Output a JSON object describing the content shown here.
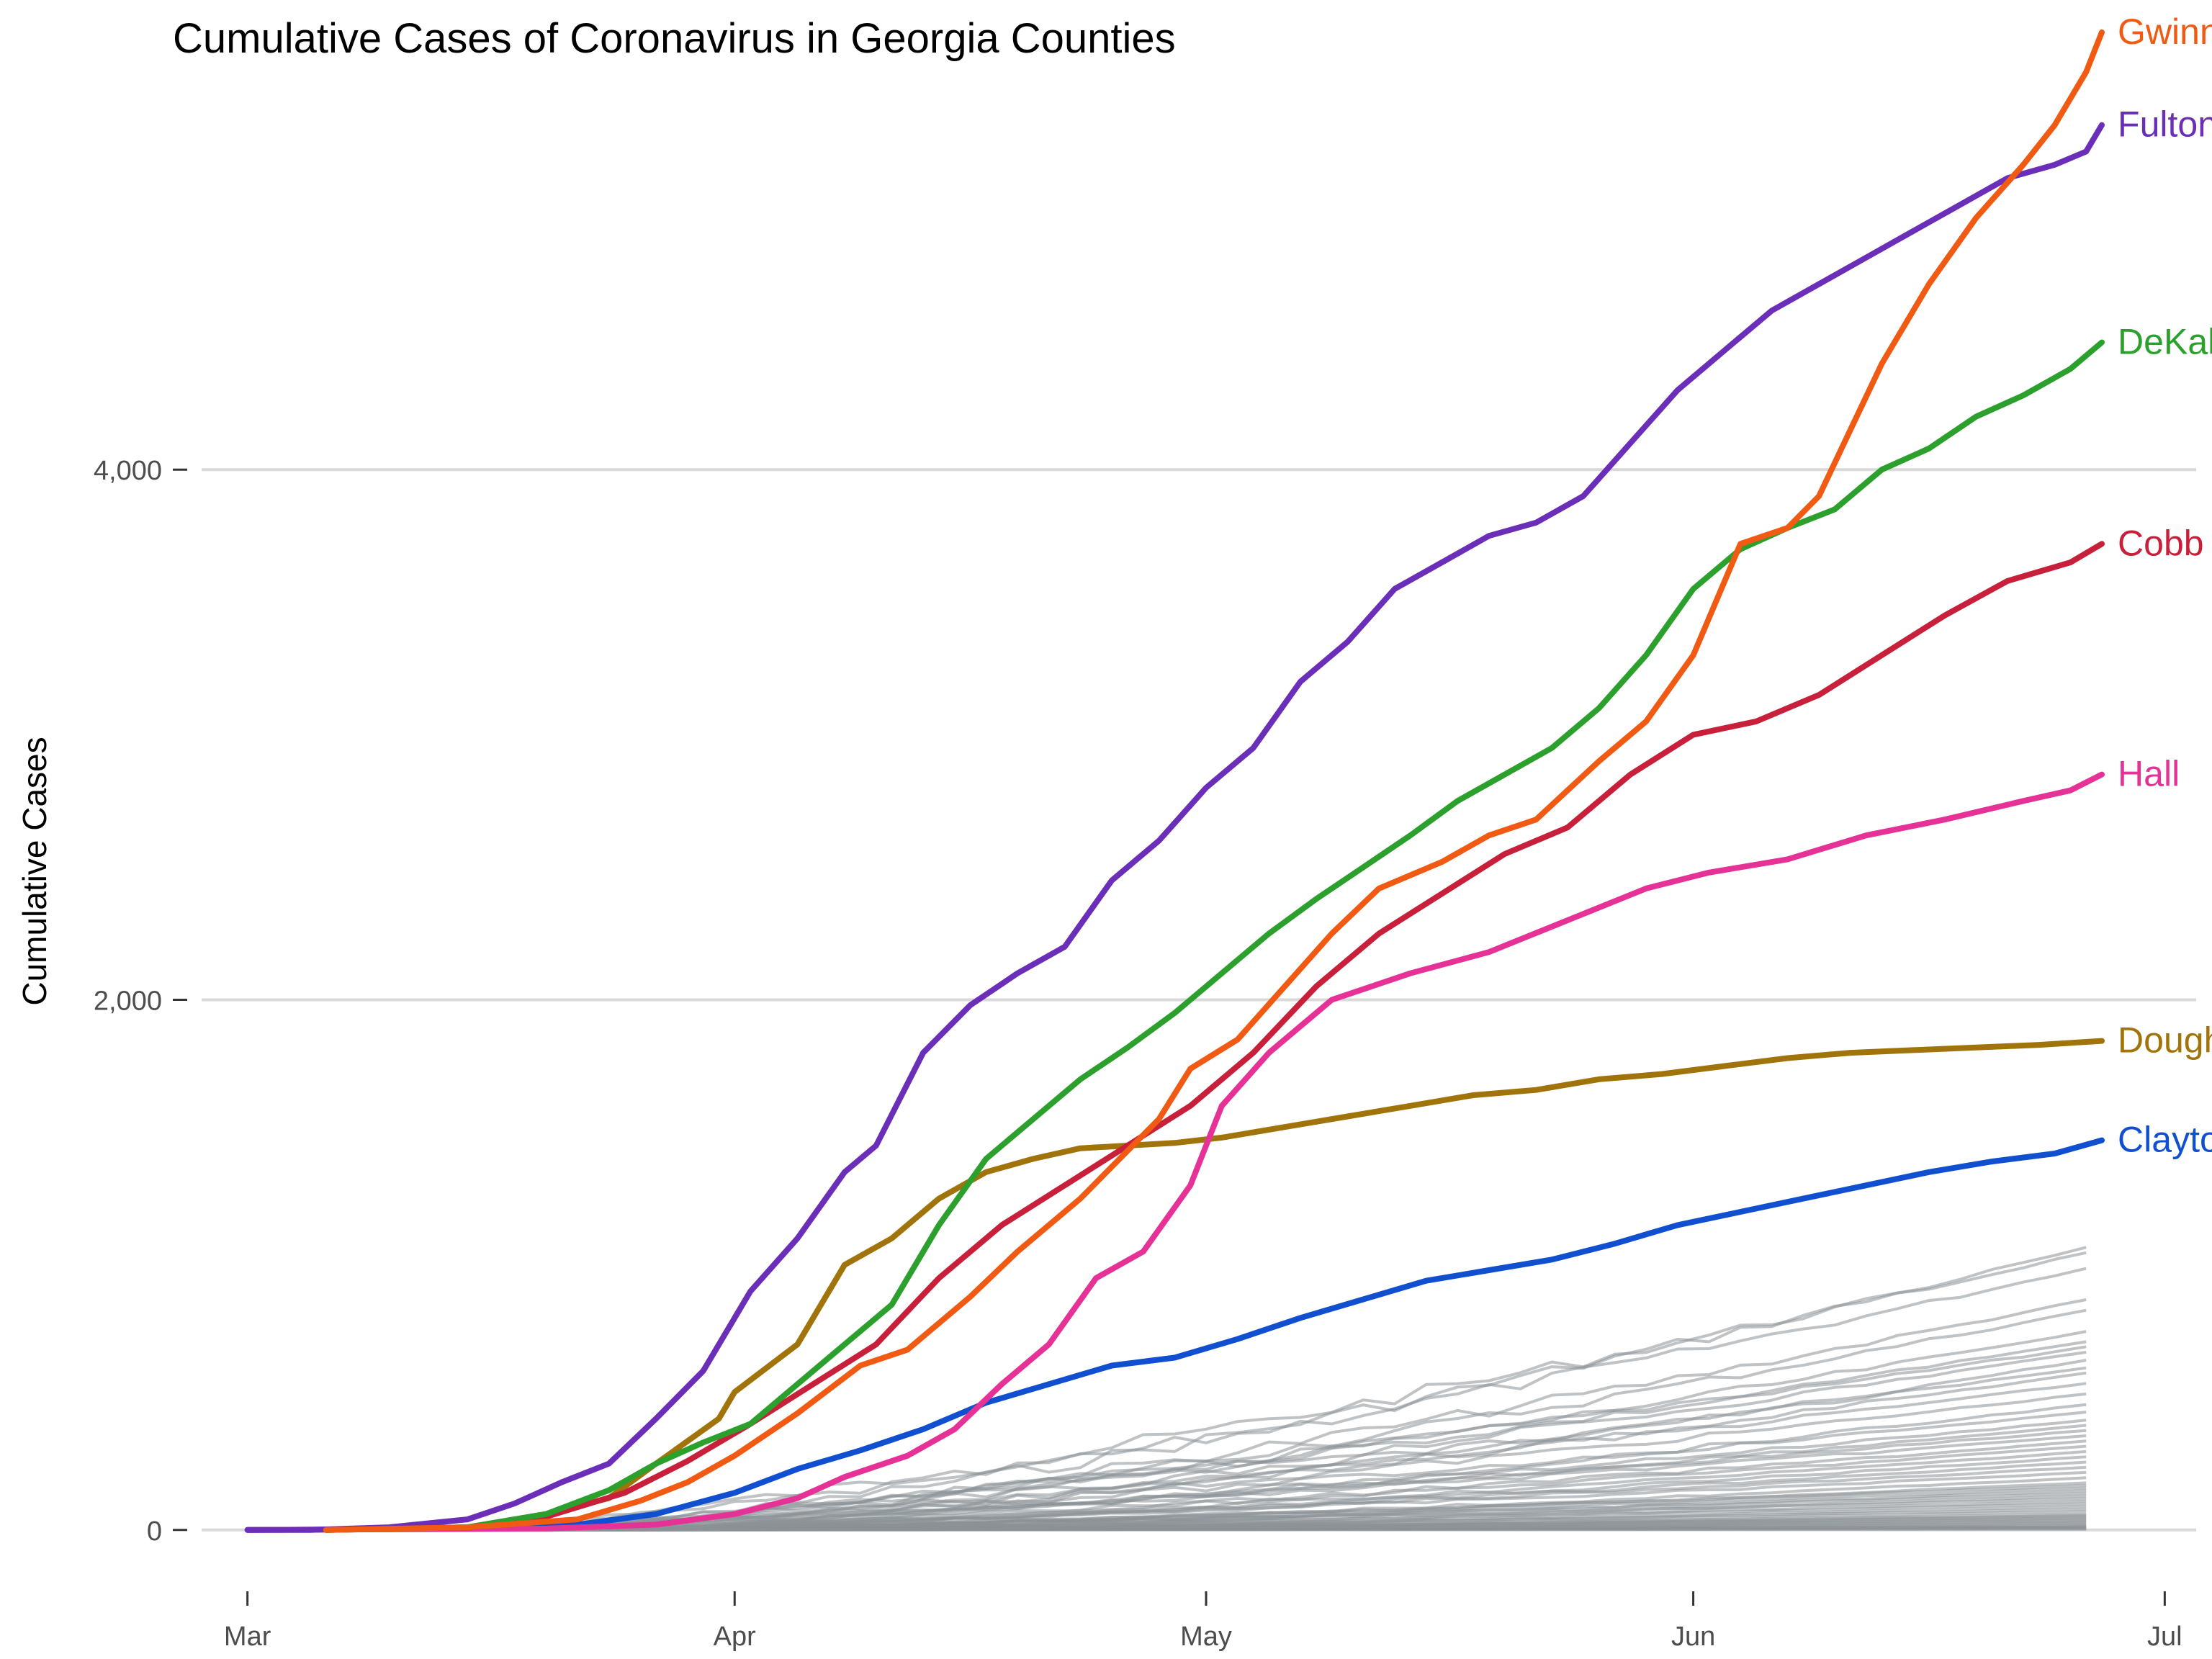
{
  "chart_data": {
    "type": "line",
    "title": "Cumulative Cases of Coronavirus in Georgia Counties",
    "xlabel": "",
    "ylabel": "Cumulative Cases",
    "x_ticks": [
      "Mar",
      "Apr",
      "May",
      "Jun",
      "Jul"
    ],
    "x_tick_dates": [
      "2020-03-01",
      "2020-04-01",
      "2020-05-01",
      "2020-06-01",
      "2020-07-01"
    ],
    "xlim": [
      "2020-02-28",
      "2020-07-03"
    ],
    "y_ticks": [
      "0",
      "2,000",
      "4,000"
    ],
    "y_tick_values": [
      0,
      2000,
      4000
    ],
    "ylim": [
      -150,
      5500
    ],
    "grid": true,
    "legend": "direct labels at line ends",
    "highlight_series": [
      {
        "name": "Gwinnett",
        "color": "#F05A12",
        "points": [
          [
            "2020-03-06",
            0
          ],
          [
            "2020-03-15",
            10
          ],
          [
            "2020-03-22",
            40
          ],
          [
            "2020-03-26",
            110
          ],
          [
            "2020-03-29",
            180
          ],
          [
            "2020-04-01",
            280
          ],
          [
            "2020-04-05",
            440
          ],
          [
            "2020-04-09",
            620
          ],
          [
            "2020-04-12",
            680
          ],
          [
            "2020-04-16",
            880
          ],
          [
            "2020-04-19",
            1050
          ],
          [
            "2020-04-23",
            1250
          ],
          [
            "2020-04-26",
            1430
          ],
          [
            "2020-04-28",
            1550
          ],
          [
            "2020-04-30",
            1740
          ],
          [
            "2020-05-03",
            1850
          ],
          [
            "2020-05-06",
            2050
          ],
          [
            "2020-05-09",
            2250
          ],
          [
            "2020-05-12",
            2420
          ],
          [
            "2020-05-16",
            2520
          ],
          [
            "2020-05-19",
            2620
          ],
          [
            "2020-05-22",
            2680
          ],
          [
            "2020-05-26",
            2900
          ],
          [
            "2020-05-29",
            3050
          ],
          [
            "2020-06-01",
            3300
          ],
          [
            "2020-06-04",
            3720
          ],
          [
            "2020-06-07",
            3780
          ],
          [
            "2020-06-09",
            3900
          ],
          [
            "2020-06-11",
            4150
          ],
          [
            "2020-06-13",
            4400
          ],
          [
            "2020-06-16",
            4700
          ],
          [
            "2020-06-19",
            4950
          ],
          [
            "2020-06-22",
            5150
          ],
          [
            "2020-06-24",
            5300
          ],
          [
            "2020-06-26",
            5500
          ],
          [
            "2020-06-27",
            5650
          ]
        ]
      },
      {
        "name": "Fulton",
        "color": "#6A2EB8",
        "points": [
          [
            "2020-03-01",
            0
          ],
          [
            "2020-03-05",
            0
          ],
          [
            "2020-03-10",
            10
          ],
          [
            "2020-03-15",
            40
          ],
          [
            "2020-03-18",
            100
          ],
          [
            "2020-03-21",
            180
          ],
          [
            "2020-03-24",
            250
          ],
          [
            "2020-03-27",
            420
          ],
          [
            "2020-03-30",
            600
          ],
          [
            "2020-04-02",
            900
          ],
          [
            "2020-04-05",
            1100
          ],
          [
            "2020-04-08",
            1350
          ],
          [
            "2020-04-10",
            1450
          ],
          [
            "2020-04-13",
            1800
          ],
          [
            "2020-04-16",
            1980
          ],
          [
            "2020-04-19",
            2100
          ],
          [
            "2020-04-22",
            2200
          ],
          [
            "2020-04-25",
            2450
          ],
          [
            "2020-04-28",
            2600
          ],
          [
            "2020-05-01",
            2800
          ],
          [
            "2020-05-04",
            2950
          ],
          [
            "2020-05-07",
            3200
          ],
          [
            "2020-05-10",
            3350
          ],
          [
            "2020-05-13",
            3550
          ],
          [
            "2020-05-16",
            3650
          ],
          [
            "2020-05-19",
            3750
          ],
          [
            "2020-05-22",
            3800
          ],
          [
            "2020-05-25",
            3900
          ],
          [
            "2020-05-28",
            4100
          ],
          [
            "2020-05-31",
            4300
          ],
          [
            "2020-06-03",
            4450
          ],
          [
            "2020-06-06",
            4600
          ],
          [
            "2020-06-09",
            4700
          ],
          [
            "2020-06-12",
            4800
          ],
          [
            "2020-06-15",
            4900
          ],
          [
            "2020-06-18",
            5000
          ],
          [
            "2020-06-21",
            5100
          ],
          [
            "2020-06-24",
            5150
          ],
          [
            "2020-06-26",
            5200
          ],
          [
            "2020-06-27",
            5300
          ]
        ]
      },
      {
        "name": "DeKalb",
        "color": "#2CA02C",
        "points": [
          [
            "2020-03-06",
            0
          ],
          [
            "2020-03-15",
            10
          ],
          [
            "2020-03-20",
            60
          ],
          [
            "2020-03-24",
            150
          ],
          [
            "2020-03-27",
            250
          ],
          [
            "2020-03-30",
            330
          ],
          [
            "2020-04-02",
            400
          ],
          [
            "2020-04-05",
            550
          ],
          [
            "2020-04-08",
            700
          ],
          [
            "2020-04-11",
            850
          ],
          [
            "2020-04-14",
            1150
          ],
          [
            "2020-04-17",
            1400
          ],
          [
            "2020-04-20",
            1550
          ],
          [
            "2020-04-23",
            1700
          ],
          [
            "2020-04-26",
            1820
          ],
          [
            "2020-04-29",
            1950
          ],
          [
            "2020-05-02",
            2100
          ],
          [
            "2020-05-05",
            2250
          ],
          [
            "2020-05-08",
            2380
          ],
          [
            "2020-05-11",
            2500
          ],
          [
            "2020-05-14",
            2620
          ],
          [
            "2020-05-17",
            2750
          ],
          [
            "2020-05-20",
            2850
          ],
          [
            "2020-05-23",
            2950
          ],
          [
            "2020-05-26",
            3100
          ],
          [
            "2020-05-29",
            3300
          ],
          [
            "2020-06-01",
            3550
          ],
          [
            "2020-06-04",
            3700
          ],
          [
            "2020-06-07",
            3780
          ],
          [
            "2020-06-10",
            3850
          ],
          [
            "2020-06-13",
            4000
          ],
          [
            "2020-06-16",
            4080
          ],
          [
            "2020-06-19",
            4200
          ],
          [
            "2020-06-22",
            4280
          ],
          [
            "2020-06-25",
            4380
          ],
          [
            "2020-06-27",
            4480
          ]
        ]
      },
      {
        "name": "Cobb",
        "color": "#C8203A",
        "points": [
          [
            "2020-03-06",
            0
          ],
          [
            "2020-03-15",
            10
          ],
          [
            "2020-03-20",
            50
          ],
          [
            "2020-03-25",
            140
          ],
          [
            "2020-03-29",
            260
          ],
          [
            "2020-04-02",
            400
          ],
          [
            "2020-04-06",
            550
          ],
          [
            "2020-04-10",
            700
          ],
          [
            "2020-04-14",
            950
          ],
          [
            "2020-04-18",
            1150
          ],
          [
            "2020-04-22",
            1300
          ],
          [
            "2020-04-26",
            1450
          ],
          [
            "2020-04-30",
            1600
          ],
          [
            "2020-05-04",
            1800
          ],
          [
            "2020-05-08",
            2050
          ],
          [
            "2020-05-12",
            2250
          ],
          [
            "2020-05-16",
            2400
          ],
          [
            "2020-05-20",
            2550
          ],
          [
            "2020-05-24",
            2650
          ],
          [
            "2020-05-28",
            2850
          ],
          [
            "2020-06-01",
            3000
          ],
          [
            "2020-06-05",
            3050
          ],
          [
            "2020-06-09",
            3150
          ],
          [
            "2020-06-13",
            3300
          ],
          [
            "2020-06-17",
            3450
          ],
          [
            "2020-06-21",
            3580
          ],
          [
            "2020-06-25",
            3650
          ],
          [
            "2020-06-27",
            3720
          ]
        ]
      },
      {
        "name": "Hall",
        "color": "#E63296",
        "points": [
          [
            "2020-03-01",
            0
          ],
          [
            "2020-03-20",
            5
          ],
          [
            "2020-03-27",
            20
          ],
          [
            "2020-04-01",
            60
          ],
          [
            "2020-04-05",
            120
          ],
          [
            "2020-04-08",
            200
          ],
          [
            "2020-04-12",
            280
          ],
          [
            "2020-04-15",
            380
          ],
          [
            "2020-04-18",
            550
          ],
          [
            "2020-04-21",
            700
          ],
          [
            "2020-04-24",
            950
          ],
          [
            "2020-04-27",
            1050
          ],
          [
            "2020-04-30",
            1300
          ],
          [
            "2020-05-02",
            1600
          ],
          [
            "2020-05-05",
            1800
          ],
          [
            "2020-05-09",
            2000
          ],
          [
            "2020-05-14",
            2100
          ],
          [
            "2020-05-19",
            2180
          ],
          [
            "2020-05-24",
            2300
          ],
          [
            "2020-05-29",
            2420
          ],
          [
            "2020-06-02",
            2480
          ],
          [
            "2020-06-07",
            2530
          ],
          [
            "2020-06-12",
            2620
          ],
          [
            "2020-06-17",
            2680
          ],
          [
            "2020-06-22",
            2750
          ],
          [
            "2020-06-25",
            2790
          ],
          [
            "2020-06-27",
            2850
          ]
        ]
      },
      {
        "name": "Dougherty",
        "color": "#A0740A",
        "points": [
          [
            "2020-03-06",
            0
          ],
          [
            "2020-03-15",
            10
          ],
          [
            "2020-03-20",
            60
          ],
          [
            "2020-03-24",
            120
          ],
          [
            "2020-03-27",
            250
          ],
          [
            "2020-03-31",
            420
          ],
          [
            "2020-04-01",
            520
          ],
          [
            "2020-04-05",
            700
          ],
          [
            "2020-04-08",
            1000
          ],
          [
            "2020-04-11",
            1100
          ],
          [
            "2020-04-14",
            1250
          ],
          [
            "2020-04-17",
            1350
          ],
          [
            "2020-04-20",
            1400
          ],
          [
            "2020-04-23",
            1440
          ],
          [
            "2020-04-26",
            1450
          ],
          [
            "2020-04-29",
            1460
          ],
          [
            "2020-05-02",
            1480
          ],
          [
            "2020-05-06",
            1520
          ],
          [
            "2020-05-10",
            1560
          ],
          [
            "2020-05-14",
            1600
          ],
          [
            "2020-05-18",
            1640
          ],
          [
            "2020-05-22",
            1660
          ],
          [
            "2020-05-26",
            1700
          ],
          [
            "2020-05-30",
            1720
          ],
          [
            "2020-06-03",
            1750
          ],
          [
            "2020-06-07",
            1780
          ],
          [
            "2020-06-11",
            1800
          ],
          [
            "2020-06-15",
            1810
          ],
          [
            "2020-06-19",
            1820
          ],
          [
            "2020-06-23",
            1830
          ],
          [
            "2020-06-27",
            1845
          ]
        ]
      },
      {
        "name": "Clayton",
        "color": "#1050D0",
        "points": [
          [
            "2020-03-01",
            0
          ],
          [
            "2020-03-15",
            5
          ],
          [
            "2020-03-22",
            20
          ],
          [
            "2020-03-27",
            60
          ],
          [
            "2020-04-01",
            140
          ],
          [
            "2020-04-05",
            230
          ],
          [
            "2020-04-09",
            300
          ],
          [
            "2020-04-13",
            380
          ],
          [
            "2020-04-17",
            480
          ],
          [
            "2020-04-21",
            550
          ],
          [
            "2020-04-25",
            620
          ],
          [
            "2020-04-29",
            650
          ],
          [
            "2020-05-03",
            720
          ],
          [
            "2020-05-07",
            800
          ],
          [
            "2020-05-11",
            870
          ],
          [
            "2020-05-15",
            940
          ],
          [
            "2020-05-19",
            980
          ],
          [
            "2020-05-23",
            1020
          ],
          [
            "2020-05-27",
            1080
          ],
          [
            "2020-05-31",
            1150
          ],
          [
            "2020-06-04",
            1200
          ],
          [
            "2020-06-08",
            1250
          ],
          [
            "2020-06-12",
            1300
          ],
          [
            "2020-06-16",
            1350
          ],
          [
            "2020-06-20",
            1390
          ],
          [
            "2020-06-24",
            1420
          ],
          [
            "2020-06-27",
            1470
          ]
        ]
      }
    ],
    "background_series_color": "#8A9298",
    "background_series_end_values": [
      1080,
      1060,
      1000,
      880,
      840,
      760,
      720,
      700,
      680,
      650,
      620,
      600,
      560,
      520,
      480,
      450,
      420,
      400,
      380,
      360,
      340,
      320,
      300,
      280,
      260,
      240,
      220,
      200,
      180,
      170,
      160,
      150,
      140,
      130,
      120,
      110,
      100,
      90,
      80,
      70,
      60,
      55,
      50,
      45,
      40,
      35,
      30,
      25,
      20,
      15,
      12,
      10,
      8,
      5,
      3
    ]
  }
}
